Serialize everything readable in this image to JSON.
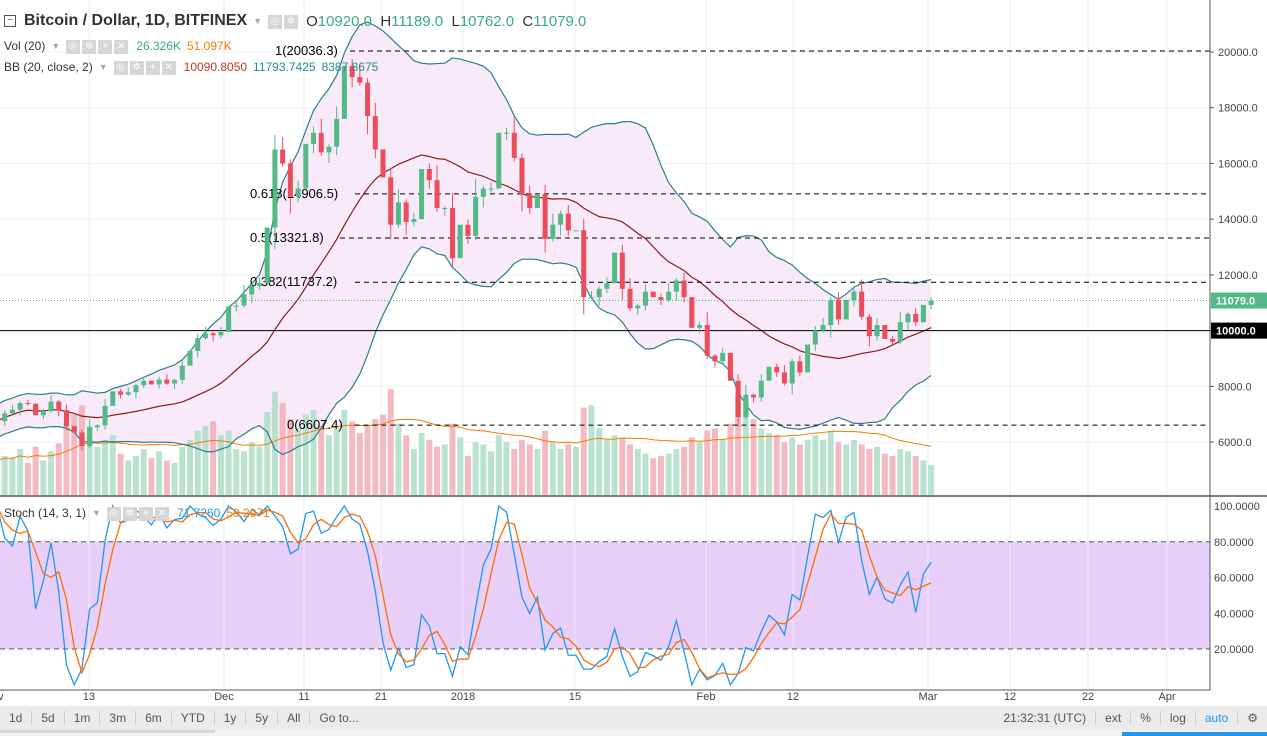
{
  "header": {
    "title": "Bitcoin / Dollar, 1D, BITFINEX",
    "ohlc": {
      "o_label": "O",
      "o": "10920.0",
      "h_label": "H",
      "h": "11189.0",
      "l_label": "L",
      "l": "10762.0",
      "c_label": "C",
      "c": "11079.0"
    }
  },
  "indicators": {
    "vol": {
      "label": "Vol (20)",
      "v1": "26.326K",
      "v2": "51.097K"
    },
    "bb": {
      "label": "BB (20, close, 2)",
      "basis": "10090.8050",
      "upper": "11793.7425",
      "lower": "8387.8675"
    },
    "stoch": {
      "label": "Stoch (14, 3, 1)",
      "k": "71.7260",
      "d": "59.2971"
    }
  },
  "colors": {
    "up": "#53b987",
    "down": "#eb4d5c",
    "bb_band": "#2a7f8a",
    "bb_basis": "#8b1a1a",
    "bb_fill": "#f7e6f7",
    "vol_ma": "#f57c00",
    "stoch_k": "#2196f3",
    "stoch_d": "#ff6d00",
    "stoch_band": "#e7cff9",
    "last_price": "#53b987"
  },
  "chart_data": {
    "type": "candlestick",
    "symbol": "Bitcoin / Dollar",
    "interval": "1D",
    "exchange": "BITFINEX",
    "start_date": "2017-11-01",
    "closes": [
      6750,
      7030,
      7160,
      7400,
      7380,
      6960,
      7110,
      7450,
      7140,
      6570,
      6340,
      5860,
      6530,
      6600,
      7300,
      7820,
      7700,
      7790,
      8040,
      8200,
      8070,
      8240,
      8100,
      8230,
      8740,
      9270,
      9730,
      9900,
      9830,
      9950,
      10860,
      10900,
      11300,
      11600,
      11700,
      13700,
      16500,
      16000,
      14800,
      15100,
      16700,
      17100,
      16400,
      16600,
      17600,
      19500,
      19100,
      18900,
      17700,
      16500,
      15500,
      13800,
      14600,
      13900,
      14000,
      15800,
      15400,
      14400,
      14400,
      12600,
      13800,
      13400,
      14800,
      15100,
      15100,
      17100,
      17100,
      16200,
      14900,
      14400,
      14900,
      13300,
      13800,
      14200,
      13600,
      13600,
      11200,
      11200,
      11500,
      11700,
      12800,
      11500,
      10800,
      10900,
      11400,
      11200,
      11100,
      11400,
      11800,
      11200,
      10100,
      10200,
      9100,
      8900,
      9200,
      8200,
      6900,
      7700,
      7600,
      8200,
      8700,
      8500,
      8100,
      8900,
      8500,
      9500,
      10000,
      10200,
      11100,
      10400,
      11100,
      11400,
      10500,
      9800,
      10200,
      9700,
      9600,
      10300,
      10600,
      10300,
      10920,
      11079
    ],
    "last_candle": {
      "open": 10920,
      "high": 11189,
      "low": 10762,
      "close": 11079
    },
    "volume_k": [
      30,
      34,
      32,
      40,
      28,
      42,
      30,
      38,
      45,
      62,
      70,
      78,
      60,
      42,
      48,
      52,
      36,
      30,
      34,
      40,
      32,
      38,
      30,
      28,
      42,
      48,
      56,
      60,
      64,
      52,
      56,
      40,
      38,
      46,
      42,
      72,
      90,
      80,
      66,
      58,
      70,
      74,
      60,
      52,
      58,
      74,
      64,
      54,
      60,
      66,
      70,
      92,
      62,
      52,
      40,
      54,
      48,
      42,
      44,
      62,
      50,
      34,
      46,
      44,
      38,
      52,
      46,
      40,
      48,
      44,
      40,
      56,
      46,
      40,
      44,
      42,
      76,
      78,
      58,
      48,
      52,
      50,
      44,
      40,
      36,
      32,
      34,
      36,
      40,
      42,
      50,
      46,
      56,
      58,
      48,
      62,
      88,
      80,
      66,
      58,
      54,
      52,
      46,
      50,
      44,
      48,
      52,
      48,
      56,
      46,
      44,
      48,
      44,
      40,
      42,
      36,
      34,
      40,
      38,
      34,
      30,
      26
    ],
    "price_axis": {
      "ticks": [
        "20000.0",
        "18000.0",
        "16000.0",
        "14000.0",
        "12000.0",
        "10000.0",
        "8000.0",
        "6000.0"
      ],
      "range": [
        4500,
        21500
      ]
    },
    "stoch_axis": {
      "ticks": [
        "100.0000",
        "80.0000",
        "60.0000",
        "40.0000",
        "20.0000"
      ],
      "range": [
        0,
        100
      ]
    },
    "time_axis": [
      "v",
      "13",
      "Dec",
      "11",
      "21",
      "2018",
      "15",
      "Feb",
      "12",
      "Mar",
      "12",
      "22",
      "Apr"
    ],
    "fib_levels": [
      {
        "label": "1(20036.3)",
        "value": 20036.3
      },
      {
        "label": "0.618(14906.5)",
        "value": 14906.5
      },
      {
        "label": "0.5(13321.8)",
        "value": 13321.8
      },
      {
        "label": "0.382(11737.2)",
        "value": 11737.2
      },
      {
        "label": "0(6607.4)",
        "value": 6607.4
      }
    ],
    "horizontal_line": {
      "value": 10000,
      "label": "10000.0"
    },
    "last_price": {
      "value": 11079,
      "label": "11079.0"
    },
    "grid": true
  },
  "toolbar": {
    "ranges": [
      "1d",
      "5d",
      "1m",
      "3m",
      "6m",
      "YTD",
      "1y",
      "5y",
      "All",
      "Go to..."
    ],
    "time": "21:32:31 (UTC)",
    "right": [
      "ext",
      "%",
      "log",
      "auto"
    ]
  }
}
